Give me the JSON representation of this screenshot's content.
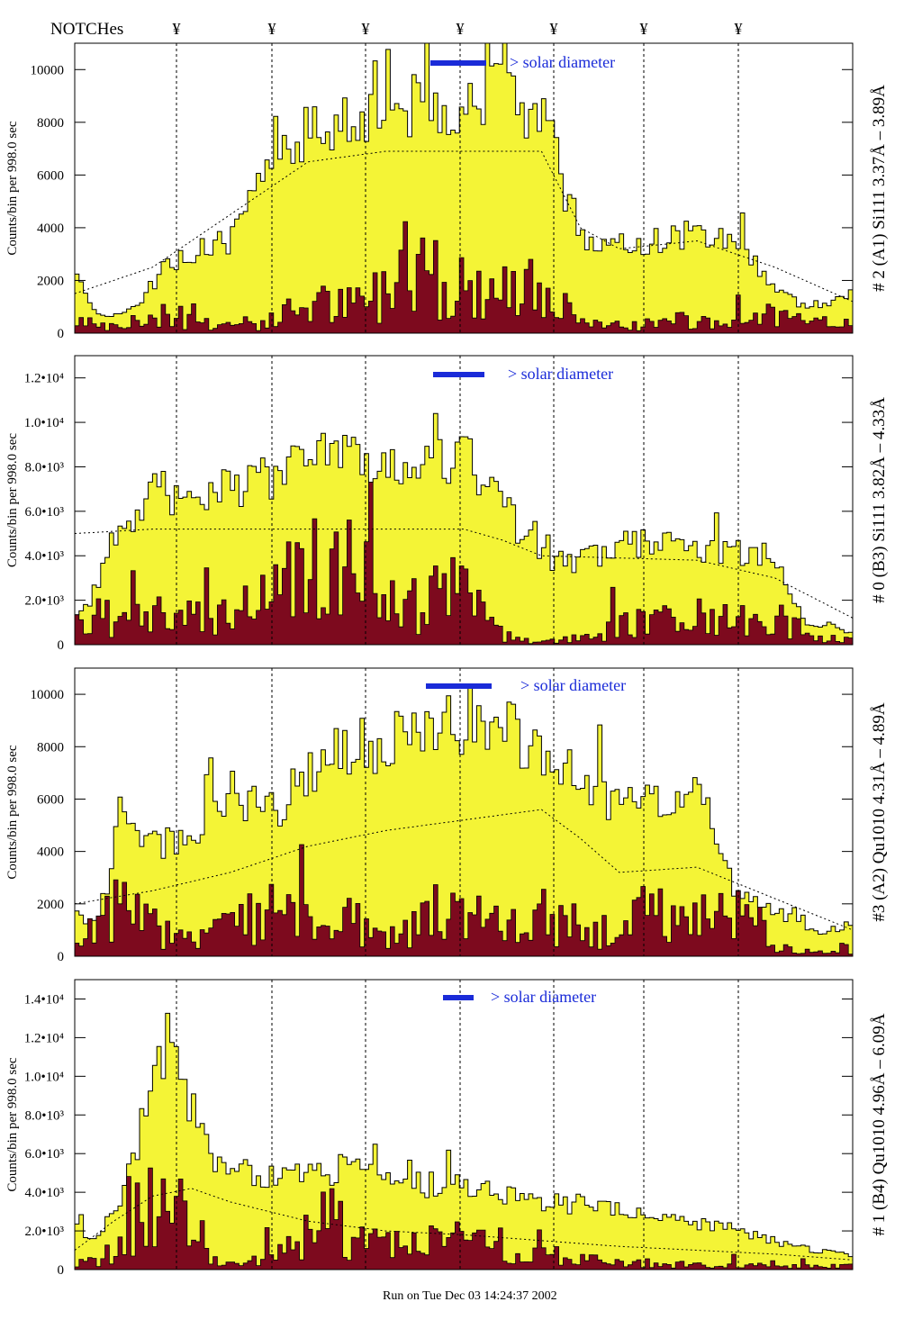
{
  "header": {
    "notches_label": "NOTCHes",
    "notch_marker": "¥"
  },
  "footer": {
    "run_text": "Run on Tue Dec 03 14:24:37 2002"
  },
  "chart_data": [
    {
      "type": "area",
      "ylabel": "Counts/bin per    998.0 sec",
      "right_label": "# 2 (A1) Si111  3.37Å – 3.89Å",
      "solar_label": "> solar diameter",
      "ylim": [
        0,
        11000
      ],
      "yticks": [
        0,
        2000,
        4000,
        6000,
        8000,
        10000
      ],
      "ytick_labels": [
        "0",
        "2000",
        "4000",
        "6000",
        "8000",
        "10000"
      ],
      "envelope_x": [
        0.0,
        0.02,
        0.04,
        0.08,
        0.12,
        0.16,
        0.2,
        0.23,
        0.26,
        0.3,
        0.35,
        0.4,
        0.45,
        0.5,
        0.55,
        0.6,
        0.63,
        0.66,
        0.7,
        0.75,
        0.8,
        0.85,
        0.9,
        0.94,
        1.0
      ],
      "envelope_y": [
        2200,
        1200,
        600,
        1000,
        2800,
        3200,
        3600,
        5200,
        7500,
        8000,
        8600,
        8900,
        9000,
        9100,
        9200,
        8700,
        5600,
        3500,
        3400,
        3700,
        3900,
        3800,
        1800,
        1000,
        1500
      ],
      "dark_x": [
        0.0,
        0.05,
        0.1,
        0.15,
        0.2,
        0.25,
        0.3,
        0.35,
        0.4,
        0.45,
        0.5,
        0.55,
        0.6,
        0.65,
        0.7,
        0.75,
        0.8,
        0.85,
        0.9,
        0.95,
        1.0
      ],
      "dark_y": [
        1000,
        200,
        800,
        600,
        400,
        500,
        1500,
        1200,
        2000,
        2500,
        2200,
        1800,
        2000,
        400,
        300,
        500,
        600,
        500,
        800,
        400,
        600
      ],
      "smooth_x": [
        0.0,
        0.1,
        0.2,
        0.3,
        0.4,
        0.5,
        0.6,
        0.65,
        0.7,
        0.8,
        0.9,
        1.0
      ],
      "smooth_y": [
        1500,
        2500,
        4500,
        6500,
        6900,
        6900,
        6900,
        4000,
        3200,
        3500,
        2500,
        1200
      ]
    },
    {
      "type": "area",
      "ylabel": "Counts/bin per    998.0 sec",
      "right_label": "# 0 (B3) Si111  3.82Å – 4.33Å",
      "solar_label": "> solar diameter",
      "ylim": [
        0,
        13000
      ],
      "yticks": [
        0,
        2000,
        4000,
        6000,
        8000,
        10000,
        12000
      ],
      "ytick_labels": [
        "0",
        "2.0•10³",
        "4.0•10³",
        "6.0•10³",
        "8.0•10³",
        "1.0•10⁴",
        "1.2•10⁴"
      ],
      "envelope_x": [
        0.0,
        0.02,
        0.05,
        0.1,
        0.15,
        0.2,
        0.25,
        0.3,
        0.35,
        0.4,
        0.45,
        0.5,
        0.55,
        0.6,
        0.65,
        0.7,
        0.75,
        0.8,
        0.85,
        0.9,
        0.94,
        0.97,
        1.0
      ],
      "envelope_y": [
        1500,
        2000,
        5000,
        7000,
        7200,
        7400,
        7600,
        8500,
        9000,
        8200,
        8600,
        9000,
        6500,
        4000,
        3800,
        4500,
        5000,
        4500,
        4300,
        4000,
        800,
        1000,
        500
      ],
      "dark_x": [
        0.0,
        0.05,
        0.1,
        0.15,
        0.2,
        0.25,
        0.3,
        0.35,
        0.4,
        0.45,
        0.5,
        0.55,
        0.6,
        0.65,
        0.7,
        0.75,
        0.8,
        0.85,
        0.9,
        0.95,
        1.0
      ],
      "dark_y": [
        800,
        1600,
        1800,
        1500,
        1800,
        2500,
        4500,
        4000,
        2200,
        2200,
        3000,
        500,
        100,
        400,
        1000,
        1200,
        1500,
        1200,
        1400,
        400,
        300
      ],
      "smooth_x": [
        0.0,
        0.1,
        0.2,
        0.3,
        0.4,
        0.5,
        0.55,
        0.6,
        0.7,
        0.8,
        0.9,
        1.0
      ],
      "smooth_y": [
        5000,
        5200,
        5200,
        5200,
        5200,
        5200,
        4700,
        4000,
        3900,
        3800,
        3000,
        1200
      ]
    },
    {
      "type": "area",
      "ylabel": "Counts/bin per    998.0 sec",
      "right_label": "#3 (A2) Qu1010  4.31Å – 4.89Å",
      "solar_label": "> solar diameter",
      "ylim": [
        0,
        11000
      ],
      "yticks": [
        0,
        2000,
        4000,
        6000,
        8000,
        10000
      ],
      "ytick_labels": [
        "0",
        "2000",
        "4000",
        "6000",
        "8000",
        "10000"
      ],
      "envelope_x": [
        0.0,
        0.02,
        0.04,
        0.06,
        0.1,
        0.15,
        0.2,
        0.25,
        0.3,
        0.35,
        0.4,
        0.45,
        0.5,
        0.55,
        0.6,
        0.65,
        0.7,
        0.75,
        0.8,
        0.85,
        0.9,
        0.95,
        1.0
      ],
      "envelope_y": [
        2000,
        1000,
        2500,
        6000,
        4500,
        4400,
        6500,
        5500,
        7500,
        8200,
        8400,
        8600,
        9200,
        9000,
        8400,
        6800,
        6000,
        6000,
        6800,
        2500,
        1800,
        900,
        1300
      ],
      "dark_x": [
        0.0,
        0.05,
        0.1,
        0.15,
        0.2,
        0.25,
        0.3,
        0.35,
        0.4,
        0.45,
        0.5,
        0.55,
        0.6,
        0.65,
        0.7,
        0.75,
        0.8,
        0.85,
        0.9,
        0.95,
        1.0
      ],
      "dark_y": [
        600,
        2500,
        1500,
        600,
        1200,
        2000,
        1500,
        1500,
        1200,
        1800,
        2000,
        1500,
        2000,
        1200,
        1500,
        1800,
        1200,
        2000,
        500,
        200,
        400
      ],
      "smooth_x": [
        0.0,
        0.1,
        0.2,
        0.3,
        0.4,
        0.5,
        0.6,
        0.65,
        0.7,
        0.8,
        0.9,
        1.0
      ],
      "smooth_y": [
        2000,
        2500,
        3200,
        4200,
        4800,
        5200,
        5600,
        4500,
        3200,
        3400,
        2200,
        1000
      ]
    },
    {
      "type": "area",
      "ylabel": "Counts/bin per    998.0 sec",
      "right_label": "# 1 (B4) Qu1010 4.96Å – 6.09Å",
      "solar_label": "> solar diameter",
      "ylim": [
        0,
        15000
      ],
      "yticks": [
        0,
        2000,
        4000,
        6000,
        8000,
        10000,
        12000,
        14000
      ],
      "ytick_labels": [
        "0",
        "2.0•10³",
        "4.0•10³",
        "6.0•10³",
        "8.0•10³",
        "1.0•10⁴",
        "1.2•10⁴",
        "1.4•10⁴"
      ],
      "envelope_x": [
        0.0,
        0.02,
        0.05,
        0.08,
        0.1,
        0.12,
        0.15,
        0.18,
        0.2,
        0.25,
        0.3,
        0.35,
        0.4,
        0.45,
        0.5,
        0.55,
        0.6,
        0.65,
        0.7,
        0.75,
        0.8,
        0.85,
        0.9,
        0.95,
        1.0
      ],
      "envelope_y": [
        2500,
        1500,
        3000,
        6500,
        10000,
        12000,
        9000,
        6000,
        5500,
        5000,
        5000,
        5500,
        4500,
        4500,
        4500,
        4000,
        3500,
        3500,
        3200,
        2800,
        2500,
        2200,
        1500,
        1000,
        800
      ],
      "dark_x": [
        0.0,
        0.04,
        0.08,
        0.1,
        0.12,
        0.15,
        0.18,
        0.22,
        0.25,
        0.3,
        0.35,
        0.4,
        0.45,
        0.5,
        0.55,
        0.6,
        0.65,
        0.7,
        0.75,
        0.8,
        0.85,
        0.9,
        0.95,
        1.0
      ],
      "dark_y": [
        500,
        800,
        3000,
        6000,
        5000,
        2000,
        500,
        300,
        1000,
        1500,
        2000,
        1500,
        1200,
        2000,
        800,
        1000,
        600,
        400,
        400,
        300,
        300,
        200,
        200,
        200
      ],
      "smooth_x": [
        0.0,
        0.05,
        0.1,
        0.15,
        0.2,
        0.3,
        0.4,
        0.5,
        0.6,
        0.7,
        0.8,
        0.9,
        1.0
      ],
      "smooth_y": [
        1000,
        2500,
        3800,
        4200,
        3500,
        2500,
        2000,
        1800,
        1500,
        1200,
        1000,
        800,
        500
      ]
    }
  ],
  "colors": {
    "fill_light": "#f4f436",
    "fill_dark": "#7d0a1e",
    "solar_bar": "#1a2bd8",
    "solar_text": "#1a2bd8",
    "axis": "#000000"
  }
}
